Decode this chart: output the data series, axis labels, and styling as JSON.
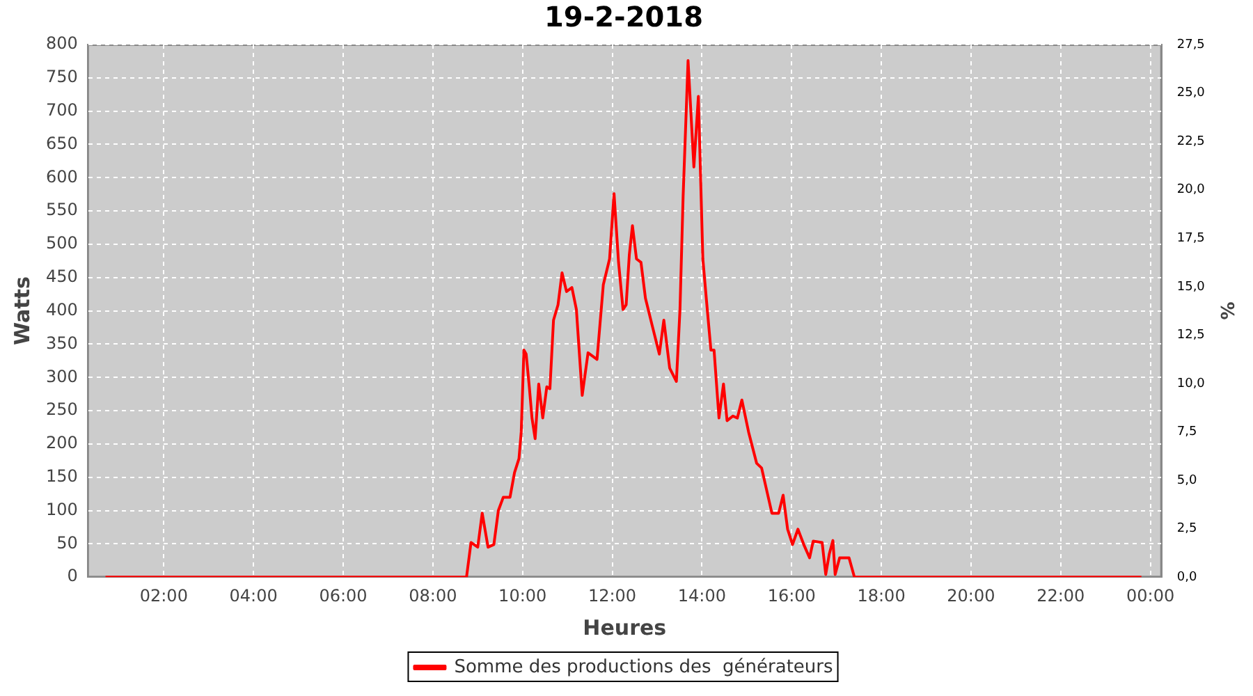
{
  "chart_data": {
    "type": "line",
    "title": "19-2-2018",
    "xlabel": "Heures",
    "ylabel": "Watts",
    "y2label": "%",
    "series": [
      {
        "name": "Somme des productions des  générateurs",
        "color": "#ff0000",
        "x": [
          0.7,
          8.75,
          8.85,
          9.0,
          9.1,
          9.23,
          9.36,
          9.46,
          9.57,
          9.72,
          9.82,
          9.92,
          9.97,
          10.03,
          10.08,
          10.15,
          10.21,
          10.28,
          10.36,
          10.45,
          10.54,
          10.61,
          10.69,
          10.79,
          10.88,
          10.98,
          11.1,
          11.2,
          11.33,
          11.46,
          11.66,
          11.8,
          11.94,
          12.04,
          12.14,
          12.24,
          12.31,
          12.38,
          12.45,
          12.54,
          12.64,
          12.74,
          12.89,
          13.05,
          13.15,
          13.28,
          13.43,
          13.51,
          13.58,
          13.69,
          13.82,
          13.92,
          14.02,
          14.1,
          14.2,
          14.27,
          14.38,
          14.48,
          14.56,
          14.69,
          14.79,
          14.89,
          15.04,
          15.22,
          15.33,
          15.56,
          15.71,
          15.81,
          15.91,
          16.02,
          16.14,
          16.27,
          16.4,
          16.48,
          16.68,
          16.76,
          16.84,
          16.92,
          16.97,
          17.07,
          17.28,
          17.4,
          23.8
        ],
        "values": [
          0,
          0,
          52,
          45,
          96,
          45,
          49,
          100,
          120,
          120,
          157,
          178,
          218,
          341,
          335,
          286,
          239,
          208,
          290,
          239,
          286,
          283,
          386,
          409,
          457,
          429,
          435,
          402,
          273,
          337,
          327,
          439,
          478,
          576,
          473,
          402,
          409,
          484,
          528,
          478,
          473,
          419,
          378,
          335,
          386,
          314,
          294,
          402,
          572,
          776,
          616,
          722,
          478,
          416,
          341,
          341,
          239,
          290,
          235,
          242,
          239,
          266,
          218,
          171,
          164,
          96,
          96,
          123,
          72,
          49,
          72,
          49,
          29,
          54,
          52,
          4,
          35,
          55,
          4,
          29,
          29,
          0,
          0
        ]
      }
    ],
    "xlim": [
      0.3,
      24.25
    ],
    "xticks": [
      {
        "value": 2,
        "label": "02:00"
      },
      {
        "value": 4,
        "label": "04:00"
      },
      {
        "value": 6,
        "label": "06:00"
      },
      {
        "value": 8,
        "label": "08:00"
      },
      {
        "value": 10,
        "label": "10:00"
      },
      {
        "value": 12,
        "label": "12:00"
      },
      {
        "value": 14,
        "label": "14:00"
      },
      {
        "value": 16,
        "label": "16:00"
      },
      {
        "value": 18,
        "label": "18:00"
      },
      {
        "value": 20,
        "label": "20:00"
      },
      {
        "value": 22,
        "label": "22:00"
      },
      {
        "value": 24,
        "label": "00:00"
      }
    ],
    "ylim": [
      0,
      800
    ],
    "yticks": [
      0,
      50,
      100,
      150,
      200,
      250,
      300,
      350,
      400,
      450,
      500,
      550,
      600,
      650,
      700,
      750,
      800
    ],
    "y2lim": [
      0,
      27.5
    ],
    "y2ticks": [
      {
        "value": 0,
        "label": "0,0"
      },
      {
        "value": 2.5,
        "label": "2,5"
      },
      {
        "value": 5,
        "label": "5,0"
      },
      {
        "value": 7.5,
        "label": "7,5"
      },
      {
        "value": 10,
        "label": "10,0"
      },
      {
        "value": 12.5,
        "label": "12,5"
      },
      {
        "value": 15,
        "label": "15,0"
      },
      {
        "value": 17.5,
        "label": "17,5"
      },
      {
        "value": 20,
        "label": "20,0"
      },
      {
        "value": 22.5,
        "label": "22,5"
      },
      {
        "value": 25,
        "label": "25,0"
      },
      {
        "value": 27.5,
        "label": "27,5"
      }
    ],
    "grid": true,
    "legend": "bottom",
    "marker": "none",
    "line_style": "solid"
  }
}
